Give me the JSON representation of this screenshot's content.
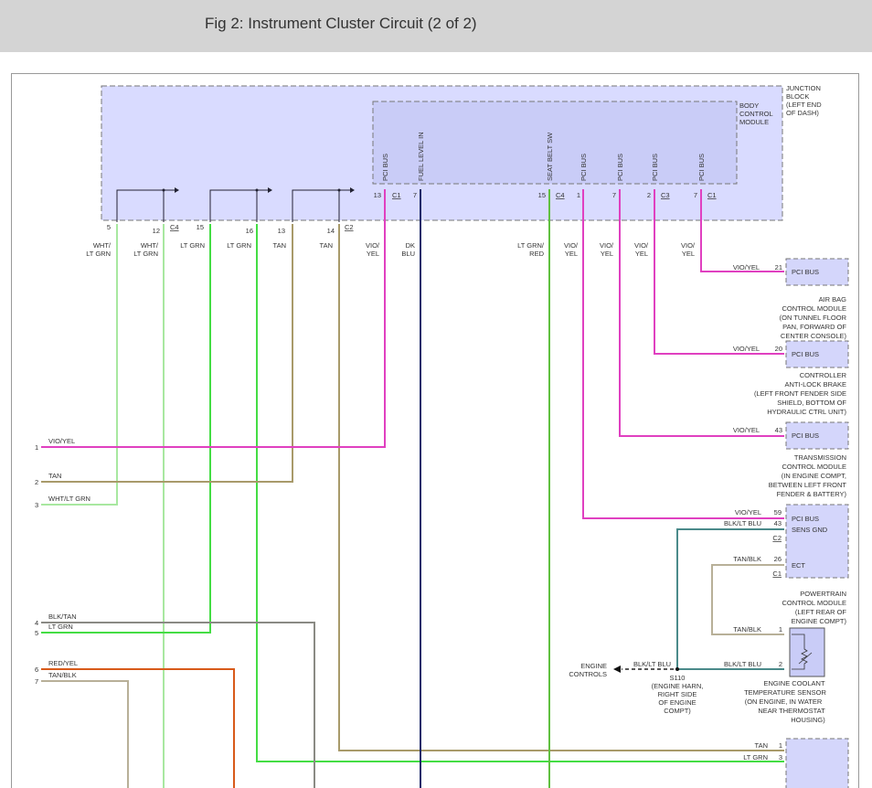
{
  "header": {
    "title": "Fig 2: Instrument Cluster Circuit (2 of 2)"
  },
  "junction_block": {
    "label": [
      "JUNCTION",
      "BLOCK",
      "(LEFT END",
      "OF DASH)"
    ],
    "pins": [
      {
        "num": "5"
      },
      {
        "num": "12",
        "conn": "C4"
      },
      {
        "num": "15"
      },
      {
        "num": "16"
      },
      {
        "num": "13"
      },
      {
        "num": "14",
        "conn": "C2"
      }
    ]
  },
  "bcm": {
    "label": [
      "BODY",
      "CONTROL",
      "MODULE"
    ],
    "pins": [
      {
        "name": "PCI BUS",
        "num": "13",
        "conn": "C1"
      },
      {
        "name": "FUEL LEVEL IN",
        "num": "7"
      },
      {
        "name": "SEAT BELT SW",
        "num": "15",
        "conn": "C4"
      },
      {
        "name": "PCI BUS",
        "num": "1"
      },
      {
        "name": "PCI BUS",
        "num": "7"
      },
      {
        "name": "PCI BUS",
        "num": "2",
        "conn": "C3"
      },
      {
        "name": "PCI BUS",
        "num": "7",
        "conn": "C1"
      }
    ]
  },
  "wire_labels": [
    [
      "WHT/",
      "LT GRN"
    ],
    [
      "WHT/",
      "LT GRN"
    ],
    [
      "LT GRN"
    ],
    [
      "LT GRN"
    ],
    [
      "TAN"
    ],
    [
      "TAN"
    ],
    [
      "VIO/",
      "YEL"
    ],
    [
      "DK",
      "BLU"
    ],
    [
      "LT GRN/",
      "RED"
    ],
    [
      "VIO/",
      "YEL"
    ],
    [
      "VIO/",
      "YEL"
    ],
    [
      "VIO/",
      "YEL"
    ],
    [
      "VIO/",
      "YEL"
    ]
  ],
  "left_pins": [
    {
      "num": "1",
      "color": "VIO/YEL"
    },
    {
      "num": "2",
      "color": "TAN"
    },
    {
      "num": "3",
      "color": "WHT/LT GRN"
    },
    {
      "num": "4",
      "color": "BLK/TAN"
    },
    {
      "num": "5",
      "color": "LT GRN"
    },
    {
      "num": "6",
      "color": "RED/YEL"
    },
    {
      "num": "7",
      "color": "TAN/BLK"
    }
  ],
  "modules": {
    "airbag": {
      "wire": "VIO/YEL",
      "pin": "21",
      "term": "PCI BUS",
      "label": [
        "AIR BAG",
        "CONTROL MODULE",
        "(ON TUNNEL FLOOR",
        "PAN, FORWARD OF",
        "CENTER CONSOLE)"
      ]
    },
    "abs": {
      "wire": "VIO/YEL",
      "pin": "20",
      "term": "PCI BUS",
      "label": [
        "CONTROLLER",
        "ANTI-LOCK BRAKE",
        "(LEFT FRONT FENDER SIDE",
        "SHIELD, BOTTOM OF",
        "HYDRAULIC CTRL UNIT)"
      ]
    },
    "tcm": {
      "wire": "VIO/YEL",
      "pin": "43",
      "term": "PCI BUS",
      "label": [
        "TRANSMISSION",
        "CONTROL MODULE",
        "(IN ENGINE COMPT,",
        "BETWEEN LEFT FRONT",
        "FENDER & BATTERY)"
      ]
    },
    "pcm": {
      "pins": [
        {
          "wire": "VIO/YEL",
          "num": "59",
          "term": "PCI BUS"
        },
        {
          "wire": "BLK/LT BLU",
          "num": "43",
          "term": "SENS GND",
          "conn": "C2"
        },
        {
          "wire": "TAN/BLK",
          "num": "26",
          "term": "ECT",
          "conn": "C1"
        }
      ],
      "label": [
        "POWERTRAIN",
        "CONTROL MODULE",
        "(LEFT REAR OF",
        "ENGINE COMPT)"
      ]
    },
    "ect": {
      "pins": [
        {
          "wire": "TAN/BLK",
          "num": "1"
        },
        {
          "wire": "BLK/LT BLU",
          "num": "2"
        }
      ],
      "label": [
        "ENGINE COOLANT",
        "TEMPERATURE SENSOR",
        "(ON ENGINE, IN WATER",
        "NEAR THERMOSTAT",
        "HOUSING)"
      ]
    },
    "splice": {
      "wire": "BLK/LT BLU",
      "dest": [
        "ENGINE",
        "CONTROLS"
      ],
      "label": [
        "S110",
        "(ENGINE HARN,",
        "RIGHT SIDE",
        "OF ENGINE",
        "COMPT)"
      ]
    },
    "bottom": {
      "pins": [
        {
          "wire": "TAN",
          "num": "1"
        },
        {
          "wire": "LT GRN",
          "num": "3"
        }
      ]
    }
  },
  "wire_colors": {
    "vio_yel": "#e040c0",
    "lt_grn": "#44dd44",
    "wht_lt_grn": "#a8e8a0",
    "tan": "#a89a6a",
    "dk_blu": "#1a2a6a",
    "lt_grn_red": "#60c040",
    "blk_tan": "#8a8a84",
    "red_yel": "#d85a1a",
    "tan_blk": "#b8b098",
    "blk_lt_blu": "#4a8a8a"
  }
}
